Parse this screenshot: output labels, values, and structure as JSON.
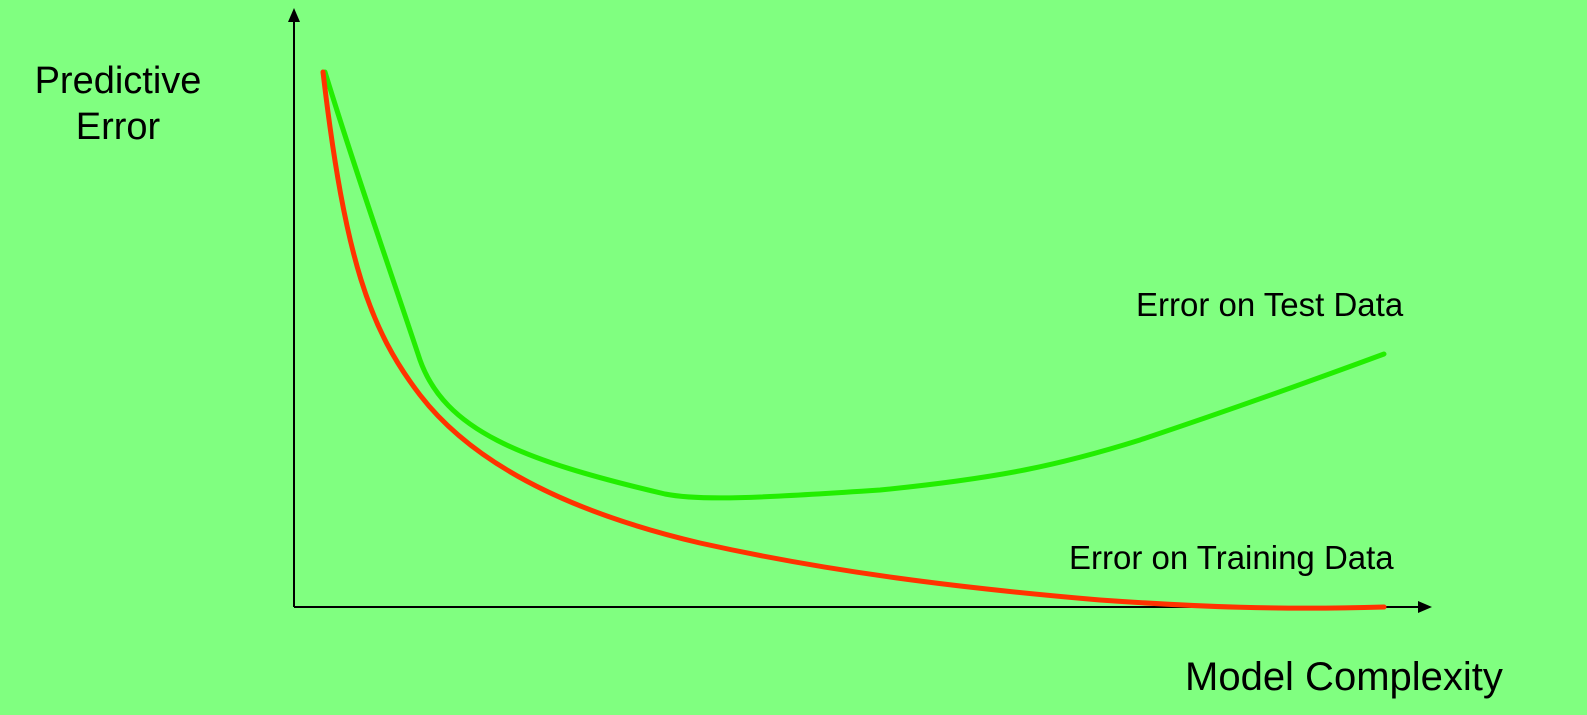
{
  "diagram": {
    "axis_y_label_line1": "Predictive",
    "axis_y_label_line2": "Error",
    "axis_x_label": "Model Complexity",
    "series": [
      {
        "label": "Error on Test Data",
        "color": "#22ee00"
      },
      {
        "label": "Error on Training Data",
        "color": "#ff3300"
      }
    ],
    "axis_color": "#000000",
    "background": "#80ff80"
  }
}
